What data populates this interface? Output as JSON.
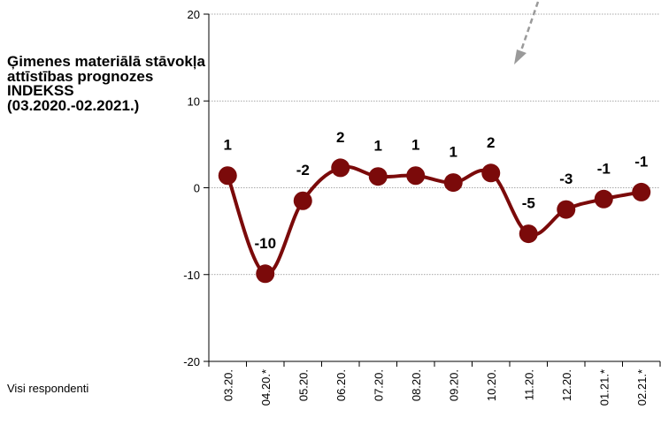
{
  "chart_data": {
    "type": "line",
    "title": "Ģimenes materiālā stāvokļa attīstības prognozes INDEKSS (03.2020.-02.2021.)",
    "subtitle": "Visi respondenti",
    "categories": [
      "03.20.",
      "04.20.*",
      "05.20.",
      "06.20.",
      "07.20.",
      "08.20.",
      "09.20.",
      "10.20.",
      "11.20.",
      "12.20.",
      "01.21.*",
      "02.21.*"
    ],
    "series": [
      {
        "values": [
          1.4,
          -9.9,
          -1.5,
          2.3,
          1.3,
          1.4,
          0.6,
          1.7,
          -5.3,
          -2.5,
          -1.3,
          -0.5
        ],
        "labels": [
          "1",
          "-10",
          "-2",
          "2",
          "1",
          "1",
          "1",
          "2",
          "-5",
          "-3",
          "-1",
          "-1"
        ],
        "color": "#7b0a0a"
      }
    ],
    "ylim": [
      -20,
      20
    ],
    "yticks": [
      20,
      10,
      0,
      -10,
      -20
    ],
    "grid": true,
    "legend": "none"
  }
}
